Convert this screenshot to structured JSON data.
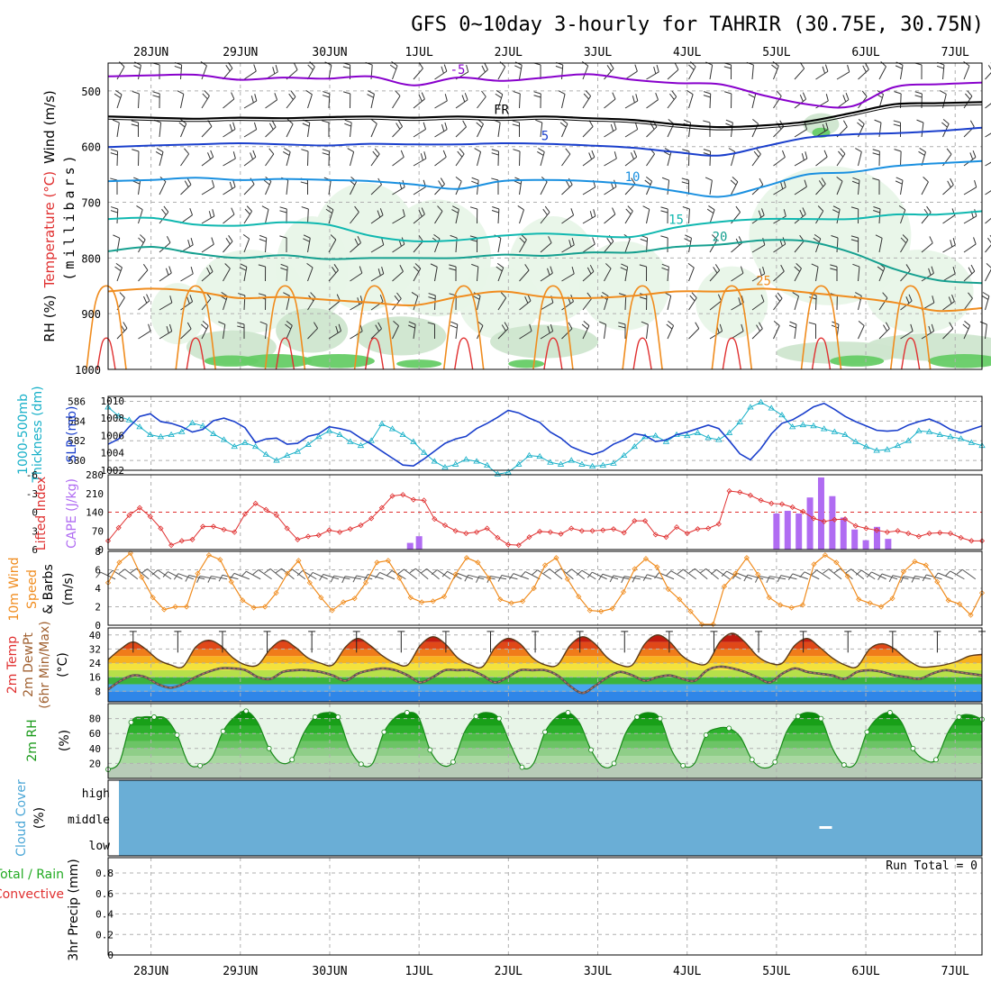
{
  "title": "GFS 0~10day 3-hourly for TAHRIR (30.75E, 30.75N)",
  "time_axis": {
    "dates": [
      "28JUN",
      "29JUN",
      "30JUN",
      "1JUL",
      "2JUL",
      "3JUL",
      "4JUL",
      "5JUL",
      "6JUL",
      "7JUL"
    ],
    "start_day_offset": -0.48,
    "end_day_offset": 9.3
  },
  "colors": {
    "grid": "#b0b0b0",
    "freeze": "#000000",
    "purple": "#8800cc",
    "blue": "#1a3fcc",
    "cyan": "#17b0c8",
    "orange": "#f08c1e",
    "red": "#e03030",
    "rh_light": "#e8f5e8",
    "rh_mid": "#cfe6cf",
    "rh_dark": "#b9cfb9",
    "rh_green": "#66cc66",
    "cape": "#b06cf2",
    "cloud": "#6aaed6",
    "rain_green": "#22aa22"
  },
  "chart_data": [
    {
      "id": "upper_air",
      "type": "contour",
      "ylabel_rh": "RH (%)",
      "ylabel_temp": "Temperature (°C)",
      "ylabel_wind": "Wind (m/s)",
      "ylabel_units": "(millibars)",
      "yticks": [
        500,
        600,
        700,
        800,
        900,
        1000
      ],
      "ylim": [
        450,
        1000
      ],
      "series": [
        {
          "name": "-5°C",
          "label": "-5",
          "color": "#8800cc",
          "level_mb": [
            474,
            472,
            471,
            480,
            476,
            478,
            474,
            490,
            476,
            482,
            476,
            470,
            480,
            486,
            488,
            508,
            524,
            528,
            493,
            488,
            485
          ]
        },
        {
          "name": "0°C (FR)",
          "label": "FR",
          "color": "#000000",
          "level_mb": [
            546,
            548,
            550,
            548,
            549,
            547,
            546,
            548,
            546,
            548,
            546,
            549,
            552,
            560,
            565,
            562,
            555,
            540,
            524,
            522,
            520
          ]
        },
        {
          "name": "5°C",
          "label": "5",
          "color": "#1a3fcc",
          "level_mb": [
            601,
            598,
            596,
            594,
            596,
            598,
            595,
            596,
            596,
            594,
            595,
            598,
            602,
            610,
            616,
            600,
            584,
            578,
            576,
            572,
            566
          ]
        },
        {
          "name": "10°C",
          "label": "10",
          "color": "#1a90e0",
          "level_mb": [
            662,
            660,
            656,
            660,
            658,
            660,
            662,
            668,
            676,
            662,
            660,
            662,
            668,
            680,
            690,
            672,
            650,
            646,
            635,
            630,
            626
          ]
        },
        {
          "name": "15°C",
          "label": "15",
          "color": "#10b8b0",
          "level_mb": [
            730,
            728,
            740,
            742,
            736,
            740,
            760,
            770,
            768,
            760,
            756,
            760,
            762,
            745,
            735,
            730,
            730,
            730,
            722,
            722,
            716
          ]
        },
        {
          "name": "20°C",
          "label": "20",
          "color": "#16a090",
          "level_mb": [
            788,
            780,
            792,
            800,
            795,
            802,
            800,
            800,
            800,
            794,
            796,
            790,
            790,
            780,
            776,
            768,
            770,
            790,
            820,
            840,
            845
          ]
        },
        {
          "name": "25°C",
          "label": "25",
          "color": "#f08c1e",
          "level_mb": [
            860,
            855,
            860,
            872,
            870,
            875,
            880,
            885,
            870,
            860,
            870,
            872,
            868,
            860,
            860,
            855,
            862,
            870,
            880,
            895,
            890
          ]
        }
      ]
    },
    {
      "id": "slp_thickness",
      "type": "line",
      "ylabel_left": "1000-500mb",
      "ylabel_left2": "Thickness (dm)",
      "ylabel_right": "SLP (mb)",
      "yticks_left": [
        580,
        582,
        584,
        586
      ],
      "yticks_right": [
        1002,
        1004,
        1006,
        1008,
        1010
      ],
      "series": [
        {
          "name": "Thickness (dm)",
          "color": "#17b0c8",
          "marker": "triangle",
          "values": [
            585.4,
            584.5,
            584.1,
            583.4,
            582.6,
            582.4,
            582.6,
            582.9,
            583.8,
            583.5,
            582.7,
            582.1,
            581.4,
            581.8,
            581.4,
            580.6,
            580.0,
            580.5,
            580.9,
            581.6,
            582.4,
            583.0,
            582.6,
            581.9,
            581.5,
            582.0,
            583.7,
            583.2,
            582.6,
            581.9,
            580.8,
            579.9,
            579.3,
            579.6,
            580.1,
            579.9,
            579.5,
            578.6,
            578.8,
            579.6,
            580.5,
            580.4,
            579.8,
            579.6,
            580.0,
            579.6,
            579.4,
            579.5,
            579.7,
            580.5,
            581.4,
            582.4,
            582.5,
            581.9,
            582.6,
            582.5,
            582.8,
            582.3,
            582.1,
            582.8,
            583.9,
            585.4,
            585.9,
            585.3,
            584.6,
            583.4,
            583.6,
            583.5,
            583.2,
            582.9,
            582.6,
            581.9,
            581.4,
            581.0,
            581.1,
            581.5,
            582.0,
            583.0,
            582.9,
            582.6,
            582.4,
            582.2,
            581.8,
            581.5
          ]
        },
        {
          "name": "SLP (mb)",
          "color": "#1a3fcc",
          "marker": "none",
          "values": [
            1005.0,
            1005.6,
            1007.0,
            1008.2,
            1008.5,
            1007.6,
            1007.4,
            1007.0,
            1006.4,
            1006.7,
            1007.7,
            1008.0,
            1007.6,
            1006.9,
            1005.2,
            1005.6,
            1005.7,
            1005.0,
            1005.1,
            1005.9,
            1006.2,
            1007.0,
            1006.8,
            1006.5,
            1005.7,
            1005.0,
            1004.2,
            1003.4,
            1002.6,
            1002.5,
            1003.3,
            1004.2,
            1005.1,
            1005.6,
            1005.9,
            1006.8,
            1007.4,
            1008.1,
            1008.9,
            1008.6,
            1008.0,
            1007.5,
            1006.4,
            1005.7,
            1004.7,
            1004.2,
            1003.8,
            1004.2,
            1005.0,
            1005.5,
            1006.2,
            1006.0,
            1005.3,
            1005.5,
            1006.1,
            1006.4,
            1006.8,
            1007.2,
            1006.8,
            1005.4,
            1003.9,
            1003.2,
            1004.5,
            1006.2,
            1007.4,
            1007.8,
            1008.5,
            1009.3,
            1009.7,
            1009.0,
            1008.2,
            1007.6,
            1007.1,
            1006.6,
            1006.5,
            1006.6,
            1007.2,
            1007.6,
            1007.9,
            1007.4,
            1006.7,
            1006.3,
            1006.7,
            1007.1
          ]
        }
      ]
    },
    {
      "id": "instability",
      "type": "bar",
      "ylabel_li": "Lifted Index",
      "ylabel_cape": "CAPE (J/kg)",
      "li_ticks": [
        -6,
        -3,
        0,
        3,
        6
      ],
      "cape_ticks": [
        0,
        70,
        140,
        210,
        280
      ],
      "lifted_index": [
        4.6,
        2.5,
        0.5,
        -0.7,
        0.7,
        2.6,
        5.3,
        4.6,
        4.4,
        2.3,
        2.3,
        2.8,
        3.2,
        0.3,
        -1.4,
        -0.4,
        0.5,
        2.6,
        4.4,
        3.9,
        3.7,
        2.9,
        3.2,
        2.7,
        2.1,
        1.0,
        -0.7,
        -2.6,
        -2.8,
        -2.0,
        -1.9,
        1.1,
        2.1,
        3.0,
        3.4,
        3.2,
        2.6,
        4.1,
        5.2,
        5.3,
        4.0,
        3.1,
        3.2,
        3.5,
        2.6,
        3.0,
        3.0,
        2.9,
        2.7,
        3.3,
        1.4,
        1.4,
        3.6,
        4.0,
        2.4,
        3.4,
        2.7,
        2.6,
        1.9,
        -3.4,
        -3.2,
        -2.7,
        -1.9,
        -1.4,
        -1.3,
        -0.8,
        -0.1,
        1.0,
        1.5,
        1.2,
        1.1,
        2.2,
        2.6,
        2.9,
        3.2,
        3.0,
        3.4,
        3.9,
        3.4,
        3.3,
        3.4,
        4.1,
        4.6,
        4.6
      ],
      "cape_bars": [
        {
          "day": 2.9,
          "value": 25
        },
        {
          "day": 3.0,
          "value": 50
        },
        {
          "day": 7.0,
          "value": 135
        },
        {
          "day": 7.125,
          "value": 145
        },
        {
          "day": 7.25,
          "value": 135
        },
        {
          "day": 7.375,
          "value": 195
        },
        {
          "day": 7.5,
          "value": 270
        },
        {
          "day": 7.625,
          "value": 200
        },
        {
          "day": 7.75,
          "value": 120
        },
        {
          "day": 7.875,
          "value": 75
        },
        {
          "day": 8.0,
          "value": 35
        },
        {
          "day": 8.125,
          "value": 85
        },
        {
          "day": 8.25,
          "value": 40
        }
      ]
    },
    {
      "id": "wind10m",
      "type": "line",
      "ylabel_line1": "10m Wind",
      "ylabel_line2": "Speed",
      "ylabel_line3": "& Barbs",
      "ylabel_units": "(m/s)",
      "yticks": [
        0,
        2,
        4,
        6,
        8
      ],
      "series": [
        {
          "name": "10m wind speed",
          "color": "#f08c1e",
          "values": [
            4.6,
            6.8,
            7.8,
            5.2,
            3.0,
            1.7,
            2.0,
            2.0,
            5.6,
            7.6,
            7.1,
            4.7,
            2.7,
            1.9,
            2.0,
            3.5,
            5.6,
            7.0,
            4.6,
            3.0,
            1.6,
            2.5,
            2.9,
            4.6,
            6.8,
            7.0,
            5.1,
            3.0,
            2.5,
            2.6,
            3.1,
            5.5,
            7.3,
            6.8,
            5.1,
            2.8,
            2.4,
            2.6,
            4.0,
            6.5,
            7.3,
            5.0,
            3.1,
            1.6,
            1.5,
            1.8,
            3.6,
            6.1,
            7.2,
            6.3,
            3.9,
            2.8,
            1.5,
            0.1,
            0.1,
            4.2,
            5.6,
            7.3,
            5.5,
            3.0,
            2.2,
            1.9,
            2.2,
            6.6,
            7.6,
            6.8,
            5.3,
            2.8,
            2.4,
            2.0,
            2.9,
            5.8,
            6.9,
            6.5,
            4.7,
            2.7,
            2.3,
            1.1,
            3.5
          ]
        }
      ]
    },
    {
      "id": "temp2m",
      "type": "area",
      "ylabel_line1": "2m Temp",
      "ylabel_line2": "2m DewPt",
      "ylabel_line3": "(6hr Min/Max)",
      "ylabel_units": "(°C)",
      "yticks": [
        8,
        16,
        24,
        32,
        40
      ],
      "series": [
        {
          "name": "Temperature",
          "color": "#5a3a1a",
          "values": [
            26.0,
            32.0,
            36.0,
            32.0,
            26.0,
            23.0,
            22.0,
            33.0,
            37.0,
            34.0,
            27.0,
            23.0,
            23.0,
            32.0,
            37.0,
            33.0,
            27.0,
            24.0,
            23.0,
            33.0,
            38.0,
            34.0,
            28.0,
            24.0,
            23.0,
            34.0,
            39.0,
            35.0,
            27.0,
            23.0,
            22.0,
            33.0,
            38.0,
            35.0,
            27.0,
            23.0,
            23.0,
            34.0,
            39.0,
            35.0,
            27.0,
            23.0,
            23.0,
            35.0,
            40.0,
            36.0,
            28.0,
            24.0,
            24.0,
            36.0,
            41.0,
            36.0,
            28.0,
            24.0,
            24.0,
            34.0,
            38.0,
            33.0,
            27.0,
            23.0,
            22.0,
            32.0,
            35.0,
            32.0,
            26.0,
            22.0,
            22.0,
            23.0,
            25.0,
            28.0,
            29.0
          ]
        },
        {
          "name": "Dew point",
          "color": "#c07060",
          "values": [
            9.0,
            14.0,
            17.0,
            16.0,
            12.0,
            10.0,
            12.0,
            16.0,
            19.0,
            21.0,
            21.0,
            20.0,
            16.0,
            15.0,
            19.0,
            20.0,
            20.0,
            19.0,
            17.0,
            14.0,
            18.0,
            20.0,
            21.0,
            20.0,
            17.0,
            13.0,
            16.0,
            20.0,
            20.0,
            20.0,
            17.0,
            13.0,
            16.0,
            20.0,
            20.0,
            20.0,
            17.0,
            11.0,
            7.0,
            11.0,
            16.0,
            19.0,
            17.0,
            14.0,
            16.0,
            17.0,
            15.0,
            14.0,
            20.0,
            22.0,
            21.0,
            19.0,
            16.0,
            13.0,
            18.0,
            21.0,
            19.0,
            18.0,
            17.0,
            15.0,
            19.0,
            20.0,
            19.0,
            17.0,
            16.0,
            15.0,
            18.0,
            20.0,
            19.0,
            18.0,
            17.0
          ]
        }
      ]
    },
    {
      "id": "rh2m",
      "type": "area",
      "ylabel_line1": "2m RH",
      "ylabel_units": "(%)",
      "yticks": [
        20,
        40,
        60,
        80
      ],
      "series": [
        {
          "name": "2m RH",
          "color": "#1a8a1a",
          "values": [
            12.0,
            22.0,
            75.0,
            82.0,
            82.0,
            80.0,
            58.0,
            20.0,
            17.0,
            27.0,
            63.0,
            82.0,
            90.0,
            75.0,
            40.0,
            21.0,
            25.0,
            60.0,
            82.0,
            88.0,
            82.0,
            40.0,
            19.0,
            20.0,
            62.0,
            82.0,
            88.0,
            82.0,
            38.0,
            18.0,
            22.0,
            62.0,
            83.0,
            88.0,
            80.0,
            45.0,
            15.0,
            20.0,
            62.0,
            82.0,
            88.0,
            74.0,
            38.0,
            16.0,
            20.0,
            60.0,
            82.0,
            88.0,
            80.0,
            38.0,
            17.0,
            20.0,
            58.0,
            67.0,
            67.0,
            55.0,
            25.0,
            14.0,
            22.0,
            62.0,
            83.0,
            88.0,
            80.0,
            40.0,
            18.0,
            20.0,
            62.0,
            82.0,
            88.0,
            75.0,
            40.0,
            25.0,
            25.0,
            60.0,
            82.0,
            85.0,
            79.0
          ]
        }
      ]
    },
    {
      "id": "cloud",
      "type": "heatmap",
      "ylabel_line1": "Cloud Cover",
      "ylabel_units": "(%)",
      "levels": [
        "high",
        "middle",
        "low"
      ],
      "cover_pct": {
        "high": 0,
        "middle": 0,
        "low": 0
      }
    },
    {
      "id": "precip",
      "type": "bar",
      "ylabel_line1": "Total / Rain",
      "ylabel_line2": "Convective",
      "ylabel_line3": "3hr Precip (mm)",
      "yticks": [
        0,
        0.2,
        0.4,
        0.6,
        0.8
      ],
      "ytick_labels": [
        "0",
        "0.2",
        "0.4",
        "0.6",
        "0.8"
      ],
      "run_total_label": "Run Total = ",
      "run_total": 0,
      "values": []
    }
  ]
}
